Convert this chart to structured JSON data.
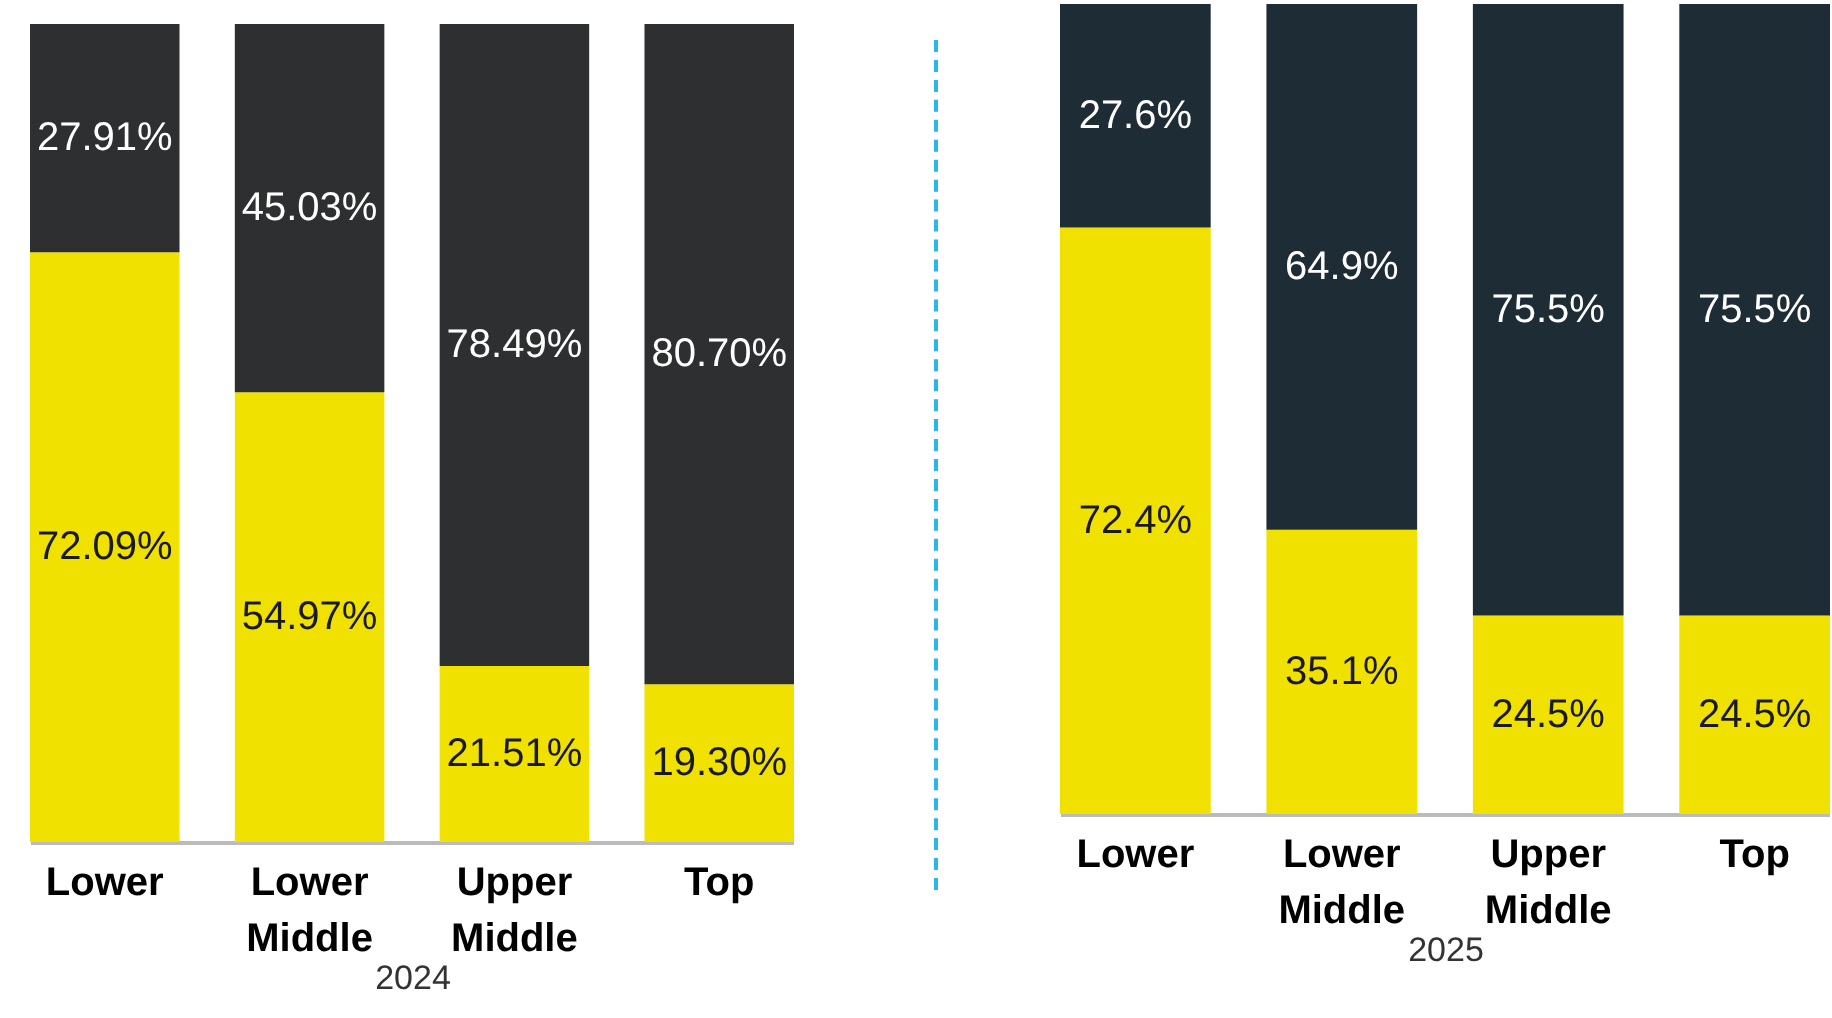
{
  "chart_data": [
    {
      "type": "bar",
      "stacked": true,
      "xlabel": "2024",
      "categories": [
        "Lower",
        "Lower Middle",
        "Upper Middle",
        "Top"
      ],
      "ylim": [
        0,
        100
      ],
      "tick_labels": "x",
      "series": [
        {
          "color": "#f0e100",
          "values": [
            72.09,
            54.97,
            21.51,
            19.3
          ],
          "value_labels": [
            "72.09%",
            "54.97%",
            "21.51%",
            "19.30%"
          ]
        },
        {
          "color": "#2d2f30",
          "values": [
            27.91,
            45.03,
            78.49,
            80.7
          ],
          "value_labels": [
            "27.91%",
            "45.03%",
            "78.49%",
            "80.70%"
          ]
        }
      ]
    },
    {
      "type": "bar",
      "stacked": true,
      "xlabel": "2025",
      "categories": [
        "Lower",
        "Lower Middle",
        "Upper Middle",
        "Top"
      ],
      "ylim": [
        0,
        100
      ],
      "tick_labels": "x",
      "series": [
        {
          "color": "#f0e100",
          "values": [
            72.4,
            35.1,
            24.5,
            24.5
          ],
          "value_labels": [
            "72.4%",
            "35.1%",
            "24.5%",
            "24.5%"
          ]
        },
        {
          "color": "#1e2c36",
          "values": [
            27.6,
            64.9,
            75.5,
            75.5
          ],
          "value_labels": [
            "27.6%",
            "64.9%",
            "75.5%",
            "75.5%"
          ]
        }
      ]
    }
  ]
}
